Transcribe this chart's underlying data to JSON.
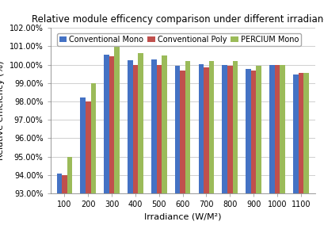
{
  "title": "Relative module efficency comparison under different irradiance",
  "xlabel": "Irradiance (W/M²)",
  "ylabel": "Relative efficiency (%)",
  "categories": [
    100,
    200,
    300,
    400,
    500,
    600,
    700,
    800,
    900,
    1000,
    1100
  ],
  "series": {
    "Conventional Mono": [
      0.941,
      0.982,
      1.0055,
      1.0025,
      1.003,
      0.9995,
      1.0005,
      1.0,
      0.9975,
      1.0,
      0.9945
    ],
    "Conventional Poly": [
      0.94,
      0.98,
      1.0045,
      1.0,
      1.0,
      0.997,
      0.9985,
      0.9995,
      0.997,
      1.0,
      0.9955
    ],
    "PERCIUM Mono": [
      0.95,
      0.99,
      1.01,
      1.0065,
      1.005,
      1.002,
      1.002,
      1.002,
      0.9995,
      1.0,
      0.9955
    ]
  },
  "colors": {
    "Conventional Mono": "#4472C4",
    "Conventional Poly": "#C0504D",
    "PERCIUM Mono": "#9BBB59"
  },
  "ylim": [
    0.93,
    1.02
  ],
  "yticks": [
    0.93,
    0.94,
    0.95,
    0.96,
    0.97,
    0.98,
    0.99,
    1.0,
    1.01,
    1.02
  ],
  "background_color": "#FFFFFF",
  "plot_bg_color": "#FFFFFF",
  "grid_color": "#C8C8C8",
  "title_fontsize": 8.5,
  "label_fontsize": 8,
  "tick_fontsize": 7,
  "legend_fontsize": 7,
  "bar_width": 0.22,
  "offsets": [
    -0.22,
    0,
    0.22
  ]
}
